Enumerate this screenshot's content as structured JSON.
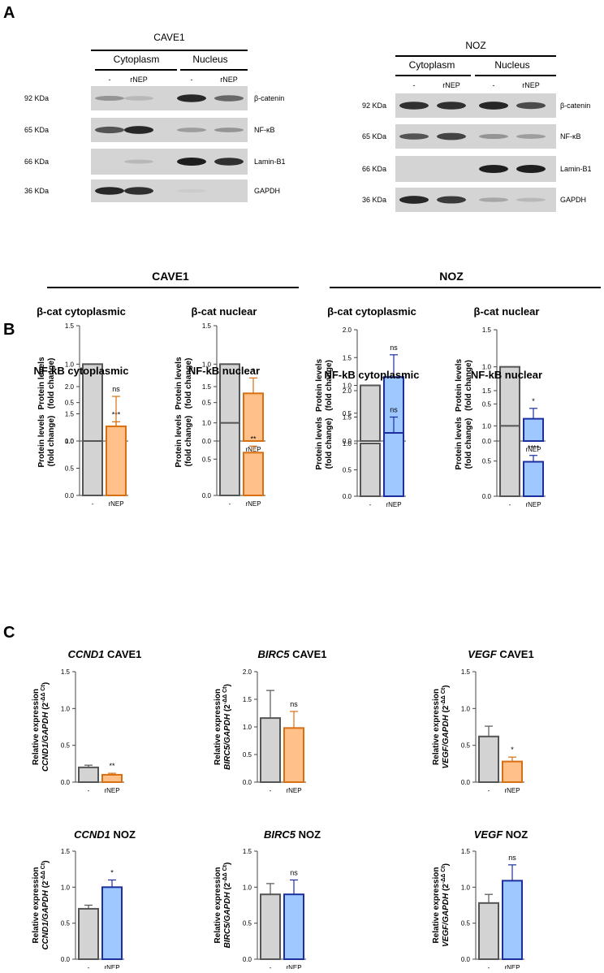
{
  "panel_labels": {
    "a": "A",
    "b": "B",
    "c": "C"
  },
  "blots": [
    {
      "cell_line": "CAVE1",
      "fraction_labels": [
        "Cytoplasm",
        "Nucleus"
      ],
      "lane_labels": [
        "-",
        "rNEP",
        "-",
        "rNEP"
      ],
      "rows": [
        {
          "mw": "92 KDa",
          "protein": "β-catenin"
        },
        {
          "mw": "65 KDa",
          "protein": "NF-κB"
        },
        {
          "mw": "66 KDa",
          "protein": "Lamin-B1"
        },
        {
          "mw": "36 KDa",
          "protein": "GAPDH"
        }
      ]
    },
    {
      "cell_line": "NOZ",
      "fraction_labels": [
        "Cytoplasm",
        "Nucleus"
      ],
      "lane_labels": [
        "-",
        "rNEP",
        "-",
        "rNEP"
      ],
      "rows": [
        {
          "mw": "92 KDa",
          "protein": "β-catenin"
        },
        {
          "mw": "65 KDa",
          "protein": "NF-κB"
        },
        {
          "mw": "66 KDa",
          "protein": "Lamin-B1"
        },
        {
          "mw": "36 KDa",
          "protein": "GAPDH"
        }
      ]
    }
  ],
  "group_headers": [
    "CAVE1",
    "NOZ"
  ],
  "colors": {
    "control": "#d3d3d3",
    "cave1_treat": "#ffc08a",
    "cave1_edge": "#d86f10",
    "noz_treat": "#9ec8ff",
    "noz_edge": "#1c2f9e"
  },
  "chart_data": [
    {
      "type": "bar",
      "id": "b1",
      "title": "β-cat cytoplasmic",
      "categories": [
        "-",
        "rNEP"
      ],
      "values": [
        1.0,
        0.15
      ],
      "errors": [
        0,
        0.1
      ],
      "significance": "***",
      "ylabel": "Protein levels\n(fold change)",
      "ylim": [
        0,
        1.5
      ],
      "yticks": [
        "0.0",
        "0.5",
        "1.0",
        "1.5"
      ]
    },
    {
      "type": "bar",
      "id": "b2",
      "title": "β-cat nuclear",
      "categories": [
        "-",
        "rNEP"
      ],
      "values": [
        1.0,
        0.62
      ],
      "errors": [
        0,
        0.2
      ],
      "significance": "*",
      "ylabel": "Protein levels\n(fold change)",
      "ylim": [
        0,
        1.5
      ],
      "yticks": [
        "0.0",
        "0.5",
        "1.0",
        "1.5"
      ]
    },
    {
      "type": "bar",
      "id": "b3",
      "title": "β-cat cytoplasmic",
      "categories": [
        "-",
        "rNEP"
      ],
      "values": [
        1.0,
        1.15
      ],
      "errors": [
        0,
        0.4
      ],
      "significance": "ns",
      "ylabel": "Protein levels\n(fold change)",
      "ylim": [
        0,
        2.0
      ],
      "yticks": [
        "0.0",
        "0.5",
        "1.0",
        "1.5",
        "2.0"
      ]
    },
    {
      "type": "bar",
      "id": "b4",
      "title": "β-cat nuclear",
      "categories": [
        "-",
        "rNEP"
      ],
      "values": [
        1.0,
        0.3
      ],
      "errors": [
        0,
        0.14
      ],
      "significance": "*",
      "ylabel": "Protein levels\n(fold change)",
      "ylim": [
        0,
        1.5
      ],
      "yticks": [
        "0.0",
        "0.5",
        "1.0",
        "1.5"
      ]
    },
    {
      "type": "bar",
      "id": "b5",
      "title": "NF-kB cytoplasmic",
      "categories": [
        "-",
        "rNEP"
      ],
      "values": [
        1.0,
        1.27
      ],
      "errors": [
        0,
        0.55
      ],
      "significance": "ns",
      "ylabel": "Protein levels\n(fold change)",
      "ylim": [
        0,
        2.0
      ],
      "yticks": [
        "0.0",
        "0.5",
        "1.0",
        "1.5",
        "2.0"
      ]
    },
    {
      "type": "bar",
      "id": "b6",
      "title": "NF-kB nuclear",
      "categories": [
        "-",
        "rNEP"
      ],
      "values": [
        1.0,
        0.59
      ],
      "errors": [
        0,
        0.09
      ],
      "significance": "**",
      "ylabel": "Protein levels\n(fold change)",
      "ylim": [
        0,
        1.5
      ],
      "yticks": [
        "0.0",
        "0.5",
        "1.0",
        "1.5"
      ]
    },
    {
      "type": "bar",
      "id": "b7",
      "title": "NF-kB cytoplasmic",
      "categories": [
        "-",
        "rNEP"
      ],
      "values": [
        1.0,
        1.2
      ],
      "errors": [
        0,
        0.3
      ],
      "significance": "ns",
      "ylabel": "Protein levels\n(fold change)",
      "ylim": [
        0,
        2.0
      ],
      "yticks": [
        "0.0",
        "0.5",
        "1.0",
        "1.5",
        "2.0"
      ]
    },
    {
      "type": "bar",
      "id": "b8",
      "title": "NF-kB nuclear",
      "categories": [
        "-",
        "rNEP"
      ],
      "values": [
        1.0,
        0.49
      ],
      "errors": [
        0,
        0.09
      ],
      "significance": "****",
      "ylabel": "Protein levels\n(fold change)",
      "ylim": [
        0,
        1.5
      ],
      "yticks": [
        "0.0",
        "0.5",
        "1.0",
        "1.5"
      ]
    },
    {
      "type": "bar",
      "id": "c1",
      "title": "CCND1 CAVE1",
      "title_italic": "CCND1",
      "title_rest": " CAVE1",
      "categories": [
        "-",
        "rNEP"
      ],
      "values": [
        0.2,
        0.1
      ],
      "errors": [
        0.03,
        0.02
      ],
      "control_errors": true,
      "significance": "**",
      "ylabel": "Relative expression",
      "ylabel_italic": "CCND1/GAPDH",
      "ylim": [
        0,
        1.5
      ],
      "yticks": [
        "0.0",
        "0.5",
        "1.0",
        "1.5"
      ]
    },
    {
      "type": "bar",
      "id": "c2",
      "title": "BIRC5 CAVE1",
      "title_italic": "BIRC5",
      "title_rest": " CAVE1",
      "categories": [
        "-",
        "rNEP"
      ],
      "values": [
        1.16,
        0.98
      ],
      "errors": [
        0.5,
        0.3
      ],
      "control_errors": true,
      "significance": "ns",
      "ylabel": "Relative expression",
      "ylabel_italic": "BIRC5/GAPDH",
      "ylim": [
        0,
        2.0
      ],
      "yticks": [
        "0.0",
        "0.5",
        "1.0",
        "1.5",
        "2.0"
      ]
    },
    {
      "type": "bar",
      "id": "c3",
      "title": "VEGF CAVE1",
      "title_italic": "VEGF",
      "title_rest": " CAVE1",
      "categories": [
        "-",
        "rNEP"
      ],
      "values": [
        0.62,
        0.28
      ],
      "errors": [
        0.14,
        0.06
      ],
      "control_errors": true,
      "significance": "*",
      "ylabel": "Relative expression",
      "ylabel_italic": "VEGF/GAPDH",
      "ylim": [
        0,
        1.5
      ],
      "yticks": [
        "0.0",
        "0.5",
        "1.0",
        "1.5"
      ]
    },
    {
      "type": "bar",
      "id": "c4",
      "title": "CCND1 NOZ",
      "title_italic": "CCND1",
      "title_rest": " NOZ",
      "categories": [
        "-",
        "rNEP"
      ],
      "values": [
        0.7,
        1.0
      ],
      "errors": [
        0.05,
        0.1
      ],
      "control_errors": true,
      "significance": "*",
      "ylabel": "Relative expression",
      "ylabel_italic": "CCND1/GAPDH",
      "ylim": [
        0,
        1.5
      ],
      "yticks": [
        "0.0",
        "0.5",
        "1.0",
        "1.5"
      ]
    },
    {
      "type": "bar",
      "id": "c5",
      "title": "BIRC5 NOZ",
      "title_italic": "BIRC5",
      "title_rest": " NOZ",
      "categories": [
        "-",
        "rNEP"
      ],
      "values": [
        0.9,
        0.9
      ],
      "errors": [
        0.15,
        0.2
      ],
      "control_errors": true,
      "significance": "ns",
      "ylabel": "Relative expression",
      "ylabel_italic": "BIRC5/GAPDH",
      "ylim": [
        0,
        1.5
      ],
      "yticks": [
        "0.0",
        "0.5",
        "1.0",
        "1.5"
      ]
    },
    {
      "type": "bar",
      "id": "c6",
      "title": "VEGF NOZ",
      "title_italic": "VEGF",
      "title_rest": " NOZ",
      "categories": [
        "-",
        "rNEP"
      ],
      "values": [
        0.78,
        1.09
      ],
      "errors": [
        0.12,
        0.22
      ],
      "control_errors": true,
      "significance": "ns",
      "ylabel": "Relative expression",
      "ylabel_italic": "VEGF/GAPDH",
      "ylim": [
        0,
        1.5
      ],
      "yticks": [
        "0.0",
        "0.5",
        "1.0",
        "1.5"
      ]
    }
  ]
}
